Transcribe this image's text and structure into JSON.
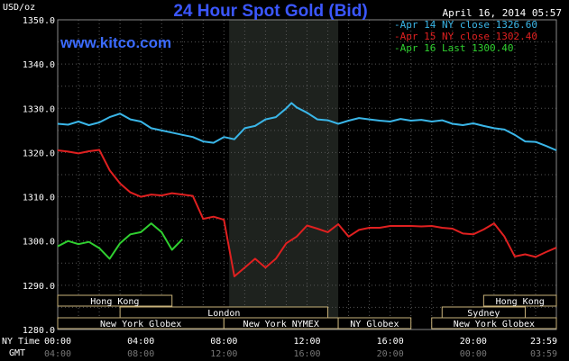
{
  "header": {
    "title": "24 Hour Spot Gold (Bid)",
    "site": "www.kitco.com",
    "date": "April 16, 2014 05:57",
    "unit": "USD/oz",
    "ny_time_label": "NY Time",
    "gmt_label": "GMT"
  },
  "legend": [
    {
      "text": "-Apr 14 NY close 1326.60",
      "color": "#3ab6e8"
    },
    {
      "text": "-Apr 15 NY close 1302.40",
      "color": "#e02020"
    },
    {
      "text": "-Apr 16 Last 1300.40",
      "color": "#30d030"
    }
  ],
  "sessions": [
    {
      "label": "Hong Kong",
      "start": 0,
      "end": 5.5
    },
    {
      "label": "Hong Kong",
      "start": 20.5,
      "end": 24
    },
    {
      "label": "London",
      "start": 3,
      "end": 13
    },
    {
      "label": "Sydney",
      "start": 18.5,
      "end": 22.5
    },
    {
      "label": "New York Globex",
      "start": 0,
      "end": 8
    },
    {
      "label": "New York NYMEX",
      "start": 8,
      "end": 13.5
    },
    {
      "label": "NY Globex",
      "start": 13.5,
      "end": 17
    },
    {
      "label": "New York Globex",
      "start": 18,
      "end": 24
    }
  ],
  "chart_data": {
    "type": "line",
    "title": "24 Hour Spot Gold (Bid)",
    "ylabel": "USD/oz",
    "xlabel": "NY Time",
    "ylim": [
      1280,
      1350
    ],
    "xlim": [
      0,
      24
    ],
    "yticks": [
      "1350.0",
      "1340.0",
      "1330.0",
      "1320.0",
      "1310.0",
      "1300.0",
      "1290.0",
      "1280.0"
    ],
    "xticks_ny": [
      "00:00",
      "04:00",
      "08:00",
      "12:00",
      "16:00",
      "20:00",
      "23:59"
    ],
    "xticks_gmt": [
      "04:00",
      "08:00",
      "12:00",
      "16:00",
      "20:00",
      "00:00",
      "03:59"
    ],
    "highlight_range": [
      8.25,
      13.5
    ],
    "grid": true,
    "series": [
      {
        "name": "Apr 14 NY close 1326.60",
        "color": "#3ab6e8",
        "x": [
          0,
          0.5,
          1,
          1.5,
          2,
          2.5,
          3,
          3.5,
          4,
          4.5,
          5,
          5.5,
          6,
          6.5,
          7,
          7.5,
          8,
          8.5,
          9,
          9.5,
          10,
          10.5,
          11,
          11.25,
          11.5,
          12,
          12.5,
          13,
          13.5,
          14,
          14.5,
          15,
          15.5,
          16,
          16.5,
          17,
          17.5,
          18,
          18.5,
          19,
          19.5,
          20,
          20.5,
          21,
          21.5,
          22,
          22.5,
          23,
          23.5,
          24
        ],
        "y": [
          1326.5,
          1326.3,
          1327,
          1326.2,
          1326.8,
          1328,
          1328.8,
          1327.5,
          1327,
          1325.5,
          1325,
          1324.5,
          1324,
          1323.5,
          1322.5,
          1322.2,
          1323.5,
          1323,
          1325.5,
          1326,
          1327.5,
          1328,
          1330,
          1331.2,
          1330.2,
          1329,
          1327.5,
          1327.3,
          1326.5,
          1327.2,
          1327.8,
          1327.5,
          1327.2,
          1327,
          1327.6,
          1327.2,
          1327.4,
          1327,
          1327.3,
          1326.5,
          1326.2,
          1326.6,
          1326,
          1325.5,
          1325.2,
          1324,
          1322.5,
          1322.4,
          1321.5,
          1320.5
        ]
      },
      {
        "name": "Apr 15 NY close 1302.40",
        "color": "#e02020",
        "x": [
          0,
          0.5,
          1,
          1.5,
          2,
          2.5,
          3,
          3.5,
          4,
          4.5,
          5,
          5.5,
          6,
          6.5,
          7,
          7.5,
          8,
          8.5,
          9,
          9.5,
          10,
          10.5,
          11,
          11.5,
          12,
          12.5,
          13,
          13.5,
          14,
          14.5,
          15,
          15.5,
          16,
          16.5,
          17,
          17.5,
          18,
          18.5,
          19,
          19.5,
          20,
          20.5,
          21,
          21.5,
          22,
          22.5,
          23,
          23.5,
          24
        ],
        "y": [
          1320.5,
          1320.2,
          1319.8,
          1320.3,
          1320.6,
          1316,
          1313,
          1311,
          1310,
          1310.5,
          1310.3,
          1310.8,
          1310.5,
          1310.2,
          1305,
          1305.5,
          1304.8,
          1292,
          1294,
          1296,
          1294,
          1296,
          1299.5,
          1301,
          1303.5,
          1302.8,
          1302,
          1303.8,
          1301,
          1302.5,
          1303,
          1303,
          1303.4,
          1303.4,
          1303.4,
          1303.3,
          1303.4,
          1303,
          1302.8,
          1301.7,
          1301.5,
          1302.6,
          1304,
          1301,
          1296.5,
          1297,
          1296.4,
          1297.5,
          1298.5
        ]
      },
      {
        "name": "Apr 16 Last 1300.40",
        "color": "#30d030",
        "x": [
          0,
          0.5,
          1,
          1.5,
          2,
          2.5,
          3,
          3.5,
          4,
          4.5,
          5,
          5.5,
          6
        ],
        "y": [
          1298.8,
          1300,
          1299.3,
          1299.8,
          1298.4,
          1296,
          1299.5,
          1301.5,
          1302,
          1304,
          1302,
          1298,
          1300.4
        ]
      }
    ]
  }
}
